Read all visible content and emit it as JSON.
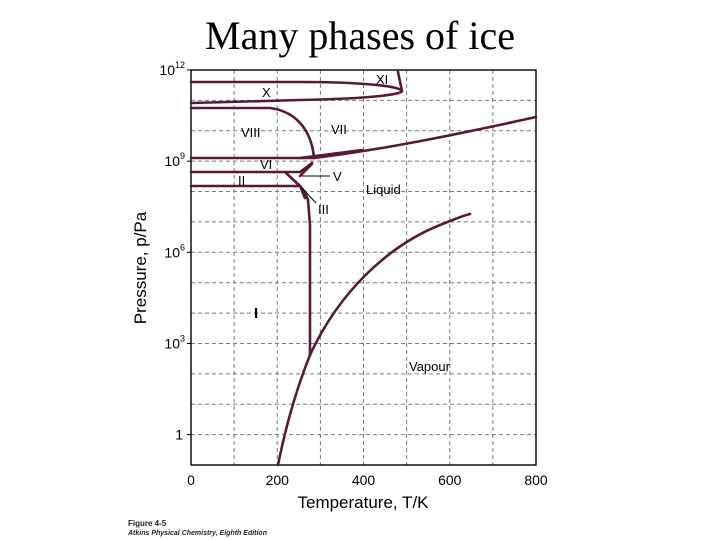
{
  "slide": {
    "title": "Many phases of ice"
  },
  "figure": {
    "x_axis": {
      "label": "Temperature, T/K",
      "ticks": [
        {
          "value": 0,
          "label": "0"
        },
        {
          "value": 200,
          "label": "200"
        },
        {
          "value": 400,
          "label": "400"
        },
        {
          "value": 600,
          "label": "600"
        },
        {
          "value": 800,
          "label": "800"
        }
      ],
      "range": [
        0,
        800
      ]
    },
    "y_axis": {
      "label": "Pressure, p/Pa",
      "scale": "log",
      "ticks": [
        {
          "exp": 12,
          "base": "10",
          "sup": "12"
        },
        {
          "exp": 9,
          "base": "10",
          "sup": "9"
        },
        {
          "exp": 6,
          "base": "10",
          "sup": "6"
        },
        {
          "exp": 3,
          "base": "10",
          "sup": "3"
        },
        {
          "exp": 0,
          "base": "1",
          "sup": ""
        }
      ],
      "range_exp": [
        -1,
        12
      ]
    },
    "grid": "dashed",
    "line_color": "#5a1838",
    "phase_labels": [
      "XI",
      "X",
      "VIII",
      "VII",
      "VI",
      "II",
      "V",
      "III",
      "Liquid",
      "I",
      "Vapour"
    ],
    "caption": {
      "title": "Figure 4-5",
      "subtitle": "Atkins Physical Chemistry, Eighth Edition"
    }
  }
}
